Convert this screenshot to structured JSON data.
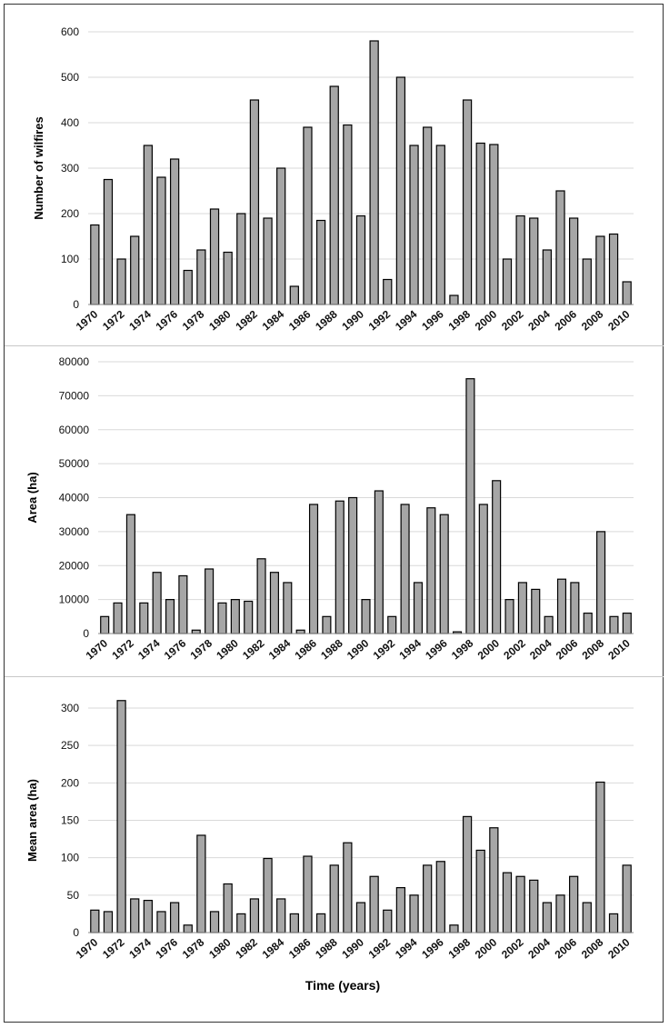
{
  "chart_data": [
    {
      "type": "bar",
      "ylabel": "Number of wilfires",
      "xlabel": "",
      "ylim": [
        0,
        600
      ],
      "yticks": [
        "0",
        "100",
        "200",
        "300",
        "400",
        "500",
        "600"
      ],
      "years": [
        1970,
        1971,
        1972,
        1973,
        1974,
        1975,
        1976,
        1977,
        1978,
        1979,
        1980,
        1981,
        1982,
        1983,
        1984,
        1985,
        1986,
        1987,
        1988,
        1989,
        1990,
        1991,
        1992,
        1993,
        1994,
        1995,
        1996,
        1997,
        1998,
        1999,
        2000,
        2001,
        2002,
        2003,
        2004,
        2005,
        2006,
        2007,
        2008,
        2009,
        2010
      ],
      "xticks": [
        "1970",
        "1972",
        "1974",
        "1976",
        "1978",
        "1980",
        "1982",
        "1984",
        "1986",
        "1988",
        "1990",
        "1992",
        "1994",
        "1996",
        "1998",
        "2000",
        "2002",
        "2004",
        "2006",
        "2008",
        "2010"
      ],
      "values": [
        175,
        275,
        100,
        150,
        350,
        280,
        320,
        75,
        120,
        210,
        115,
        200,
        450,
        190,
        300,
        40,
        390,
        185,
        480,
        395,
        195,
        580,
        55,
        500,
        350,
        390,
        350,
        20,
        450,
        355,
        352,
        100,
        195,
        190,
        120,
        250,
        190,
        100,
        150,
        155,
        50
      ],
      "color": "#a6a6a6"
    },
    {
      "type": "bar",
      "ylabel": "Area (ha)",
      "xlabel": "",
      "ylim": [
        0,
        80000
      ],
      "yticks": [
        "0",
        "10000",
        "20000",
        "30000",
        "40000",
        "50000",
        "60000",
        "70000",
        "80000"
      ],
      "years": [
        1970,
        1971,
        1972,
        1973,
        1974,
        1975,
        1976,
        1977,
        1978,
        1979,
        1980,
        1981,
        1982,
        1983,
        1984,
        1985,
        1986,
        1987,
        1988,
        1989,
        1990,
        1991,
        1992,
        1993,
        1994,
        1995,
        1996,
        1997,
        1998,
        1999,
        2000,
        2001,
        2002,
        2003,
        2004,
        2005,
        2006,
        2007,
        2008,
        2009,
        2010
      ],
      "xticks": [
        "1970",
        "1972",
        "1974",
        "1976",
        "1978",
        "1980",
        "1982",
        "1984",
        "1986",
        "1988",
        "1990",
        "1992",
        "1994",
        "1996",
        "1998",
        "2000",
        "2002",
        "2004",
        "2006",
        "2008",
        "2010"
      ],
      "values": [
        5000,
        9000,
        35000,
        9000,
        18000,
        10000,
        17000,
        1000,
        19000,
        9000,
        10000,
        9500,
        22000,
        18000,
        15000,
        1000,
        38000,
        5000,
        39000,
        40000,
        10000,
        42000,
        5000,
        38000,
        15000,
        37000,
        35000,
        500,
        75000,
        38000,
        45000,
        10000,
        15000,
        13000,
        5000,
        16000,
        15000,
        6000,
        30000,
        5000,
        6000
      ],
      "color": "#a6a6a6"
    },
    {
      "type": "bar",
      "ylabel": "Mean area (ha)",
      "xlabel": "Time (years)",
      "ylim": [
        0,
        300
      ],
      "yticks": [
        "0",
        "50",
        "100",
        "150",
        "200",
        "250",
        "300"
      ],
      "years": [
        1970,
        1971,
        1972,
        1973,
        1974,
        1975,
        1976,
        1977,
        1978,
        1979,
        1980,
        1981,
        1982,
        1983,
        1984,
        1985,
        1986,
        1987,
        1988,
        1989,
        1990,
        1991,
        1992,
        1993,
        1994,
        1995,
        1996,
        1997,
        1998,
        1999,
        2000,
        2001,
        2002,
        2003,
        2004,
        2005,
        2006,
        2007,
        2008,
        2009,
        2010
      ],
      "xticks": [
        "1970",
        "1972",
        "1974",
        "1976",
        "1978",
        "1980",
        "1982",
        "1984",
        "1986",
        "1988",
        "1990",
        "1992",
        "1994",
        "1996",
        "1998",
        "2000",
        "2002",
        "2004",
        "2006",
        "2008",
        "2010"
      ],
      "values": [
        30,
        28,
        310,
        45,
        43,
        28,
        40,
        10,
        130,
        28,
        65,
        25,
        45,
        99,
        45,
        25,
        102,
        25,
        90,
        120,
        40,
        75,
        30,
        60,
        50,
        90,
        95,
        10,
        155,
        110,
        140,
        80,
        75,
        70,
        40,
        50,
        75,
        40,
        201,
        25,
        90
      ],
      "color": "#a6a6a6"
    }
  ]
}
